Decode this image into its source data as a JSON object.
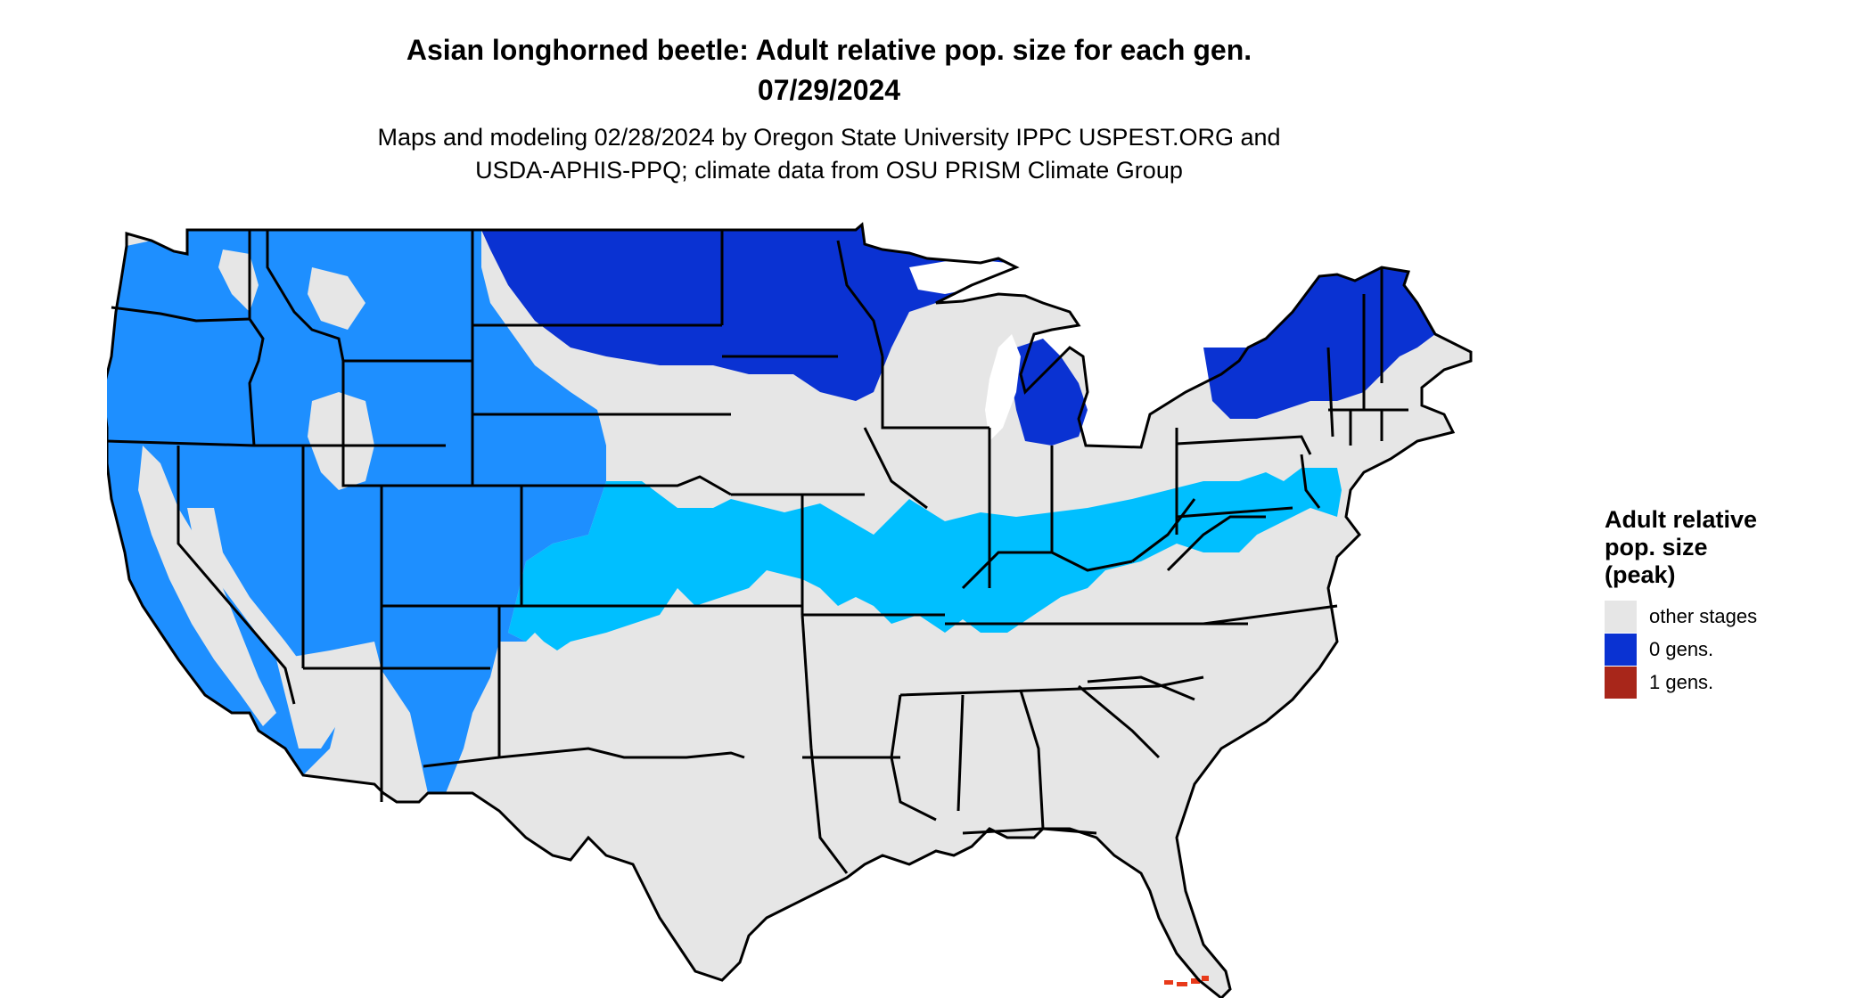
{
  "title": {
    "line1": "Asian longhorned beetle: Adult relative pop. size for each gen.",
    "line2": "07/29/2024"
  },
  "subtitle": {
    "line1": "Maps and modeling 02/28/2024 by Oregon State University IPPC USPEST.ORG and",
    "line2": "USDA-APHIS-PPQ; climate data from OSU PRISM Climate Group"
  },
  "legend": {
    "title": "Adult relative pop. size (peak)",
    "items": [
      {
        "label": "other stages",
        "color": "#e6e6e6"
      },
      {
        "label": "0 gens.",
        "color": "#0a32d2"
      },
      {
        "label": "1 gens.",
        "color": "#a8261a"
      }
    ]
  },
  "map_colors": {
    "land_other": "#e6e6e6",
    "light_blue": "#00bfff",
    "mid_blue": "#1e8fff",
    "deep_blue": "#0a32d2",
    "dark_blue": "#0a1fc0",
    "red": "#e83a1a",
    "border": "#000000"
  }
}
